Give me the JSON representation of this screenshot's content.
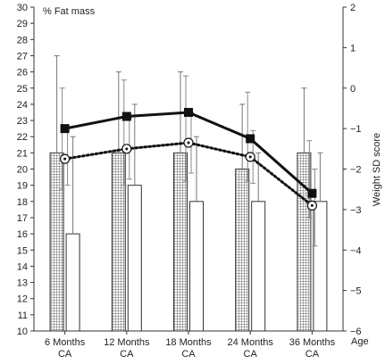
{
  "chart_data": {
    "type": "bar",
    "annotation": "% Fat mass",
    "ylabel_right": "Weight SD score",
    "xlabel": "Age",
    "categories": [
      "6 Months CA",
      "12 Months CA",
      "18 Months CA",
      "24 Months CA",
      "36 Months CA"
    ],
    "category_lines": [
      [
        "6 Months",
        "CA"
      ],
      [
        "12 Months",
        "CA"
      ],
      [
        "18 Months",
        "CA"
      ],
      [
        "24 Months",
        "CA"
      ],
      [
        "36 Months",
        "CA"
      ]
    ],
    "ylim_left": [
      10,
      30
    ],
    "ylim_right": [
      -6,
      2
    ],
    "left_ticks": [
      10,
      11,
      12,
      13,
      14,
      15,
      16,
      17,
      18,
      19,
      20,
      21,
      22,
      23,
      24,
      25,
      26,
      27,
      28,
      29,
      30
    ],
    "right_ticks": [
      -6,
      -5,
      -4,
      -3,
      -2,
      -1,
      0,
      1,
      2
    ],
    "right_tick_labels": [
      "−6",
      "−5",
      "−4",
      "−3",
      "−2",
      "−1",
      "0",
      "1",
      "2"
    ],
    "bar_series": [
      {
        "pattern": "grid",
        "values": [
          21,
          21,
          21,
          20,
          21
        ],
        "error_upper": [
          27,
          26,
          26,
          24,
          25
        ]
      },
      {
        "pattern": "plain",
        "values": [
          16,
          19,
          18,
          18,
          18
        ],
        "error_upper": [
          22,
          24,
          22,
          21,
          21
        ]
      }
    ],
    "line_series": [
      {
        "style": "solid",
        "marker": "square",
        "values": [
          -1.0,
          -0.7,
          -0.6,
          -1.25,
          -2.6
        ],
        "error_upper": [
          0.0,
          0.2,
          0.3,
          -0.1,
          -1.3
        ],
        "error_lower": [
          -2.5,
          -2.4,
          -2.3,
          -2.3,
          -3.2
        ]
      },
      {
        "style": "dotted",
        "marker": "open-circle",
        "values": [
          -1.75,
          -1.5,
          -1.35,
          -1.7,
          -2.9
        ],
        "error_upper": [
          -1.0,
          -0.75,
          -0.6,
          -1.05,
          -2.0
        ],
        "error_lower": [
          -2.4,
          -2.25,
          -2.1,
          -2.35,
          -3.9
        ]
      }
    ],
    "grid": false,
    "legend": "none"
  }
}
